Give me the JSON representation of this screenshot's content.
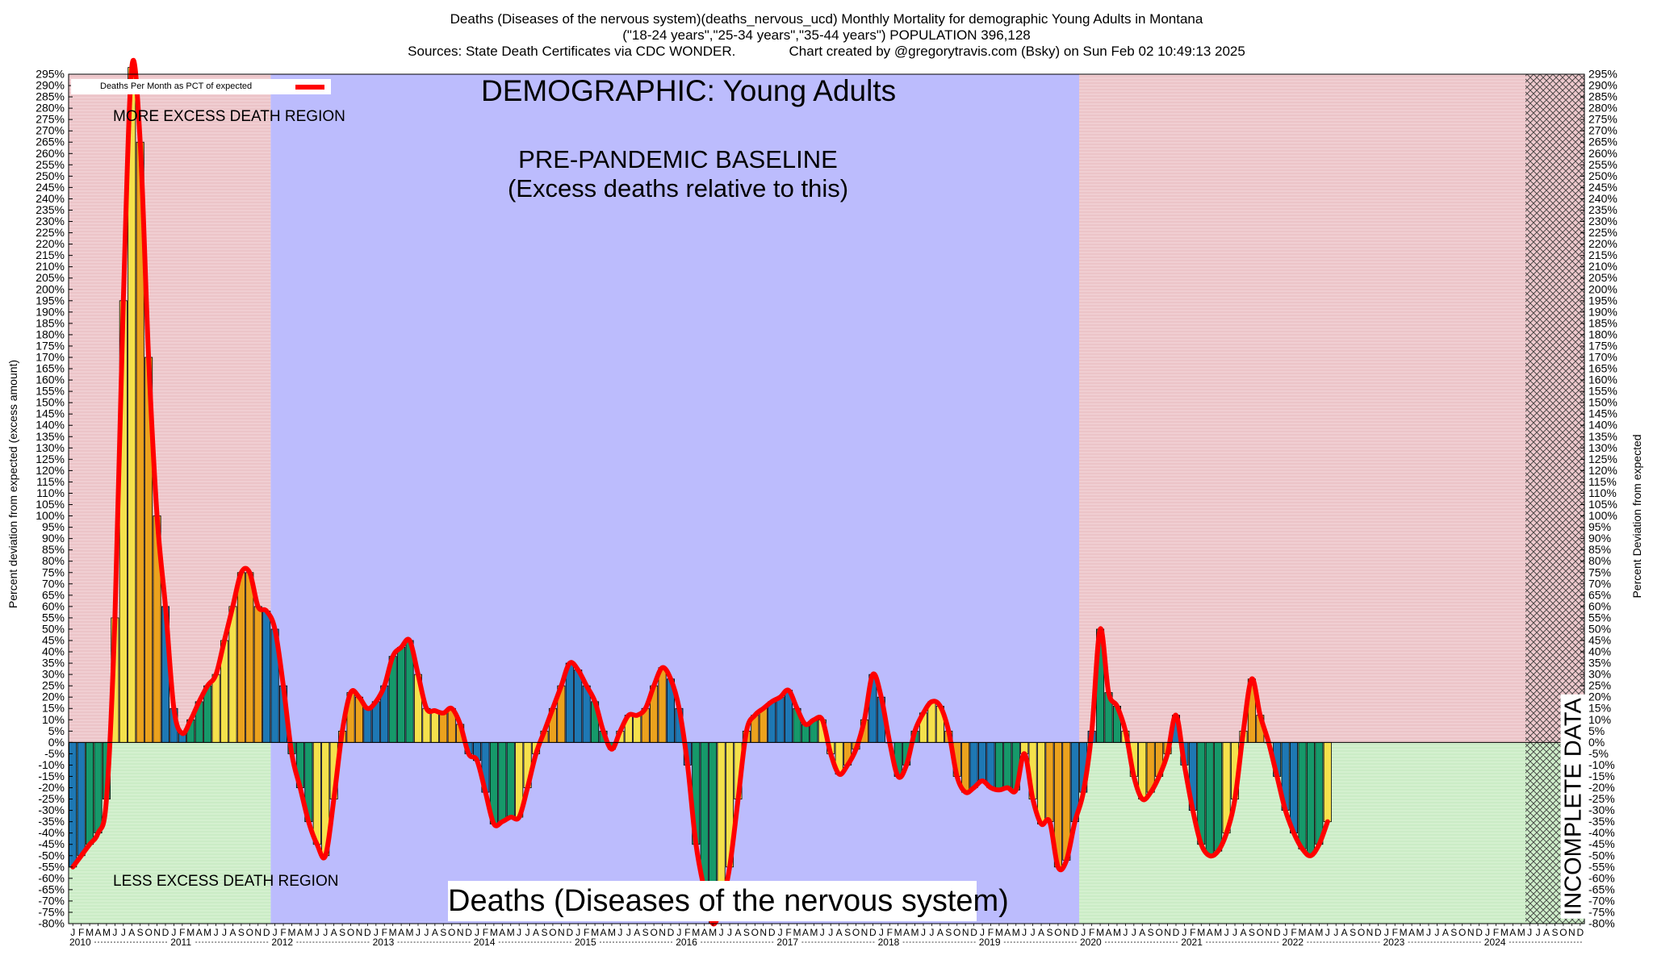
{
  "header": {
    "line1": "Deaths (Diseases of the nervous system)(deaths_nervous_ucd) Monthly Mortality for demographic Young Adults in Montana",
    "line2": "(\"18-24 years\",\"25-34 years\",\"35-44 years\") POPULATION 396,128",
    "line3": "Sources: State Death Certificates via CDC WONDER.              Chart created by @gregorytravis.com (Bsky) on Sun Feb 02 10:49:13 2025"
  },
  "annotations": {
    "demographic": "DEMOGRAPHIC: Young Adults",
    "baseline_line1": "PRE-PANDEMIC BASELINE",
    "baseline_line2": "(Excess deaths relative to this)",
    "more_excess": "MORE EXCESS DEATH REGION",
    "less_excess": "LESS EXCESS DEATH REGION",
    "metric": "Deaths (Diseases of the nervous system)",
    "incomplete": "INCOMPLETE DATA"
  },
  "legend": {
    "label": "Deaths Per Month as PCT of expected"
  },
  "colors": {
    "more_region": "#ecc4c8",
    "less_region": "#cbecc6",
    "baseline_region": "#bcbcfd",
    "line": "#ff0000",
    "bar_blue": "#1e78b4",
    "bar_green": "#16996a",
    "bar_yellow": "#f5e14c",
    "bar_orange": "#eba21e"
  },
  "chart_data": {
    "type": "bar",
    "ylabel_left": "Percent deviation from expected (excess amount)",
    "ylabel_right": "Percent Deviation from expected",
    "ylim": [
      -80,
      295
    ],
    "ytick_step": 5,
    "start": "2010-01",
    "month_letters": [
      "J",
      "F",
      "M",
      "A",
      "M",
      "J",
      "J",
      "A",
      "S",
      "O",
      "N",
      "D"
    ],
    "years": [
      "2010",
      "2011",
      "2012",
      "2013",
      "2014",
      "2015",
      "2016",
      "2017",
      "2018",
      "2019",
      "2020",
      "2021",
      "2022",
      "2023",
      "2024"
    ],
    "baseline_period": [
      "2012-01",
      "2019-12"
    ],
    "incomplete_from": "2024-06",
    "series": [
      {
        "name": "Deaths Per Month as PCT of expected",
        "values": [
          -55,
          -50,
          -45,
          -40,
          -25,
          55,
          195,
          298,
          265,
          170,
          100,
          60,
          15,
          4,
          10,
          18,
          25,
          30,
          45,
          60,
          75,
          75,
          60,
          58,
          50,
          25,
          -5,
          -20,
          -35,
          -45,
          -50,
          -25,
          5,
          22,
          20,
          15,
          18,
          25,
          38,
          42,
          45,
          30,
          15,
          14,
          13,
          15,
          8,
          -5,
          -8,
          -22,
          -36,
          -35,
          -33,
          -33,
          -20,
          -5,
          5,
          15,
          25,
          35,
          32,
          25,
          18,
          5,
          -3,
          5,
          12,
          12,
          15,
          25,
          33,
          28,
          15,
          -10,
          -45,
          -65,
          -80,
          -72,
          -55,
          -25,
          5,
          12,
          15,
          18,
          20,
          23,
          15,
          8,
          10,
          10,
          -5,
          -14,
          -10,
          -3,
          10,
          30,
          20,
          0,
          -15,
          -10,
          5,
          13,
          18,
          16,
          5,
          -15,
          -22,
          -20,
          -17,
          -20,
          -21,
          -20,
          -21,
          -5,
          -25,
          -36,
          -35,
          -55,
          -52,
          -35,
          -22,
          5,
          50,
          22,
          16,
          5,
          -15,
          -25,
          -22,
          -15,
          -5,
          12,
          -10,
          -30,
          -45,
          -50,
          -48,
          -40,
          -25,
          5,
          28,
          12,
          0,
          -15,
          -30,
          -40,
          -47,
          -50,
          -45,
          -35
        ]
      }
    ]
  }
}
